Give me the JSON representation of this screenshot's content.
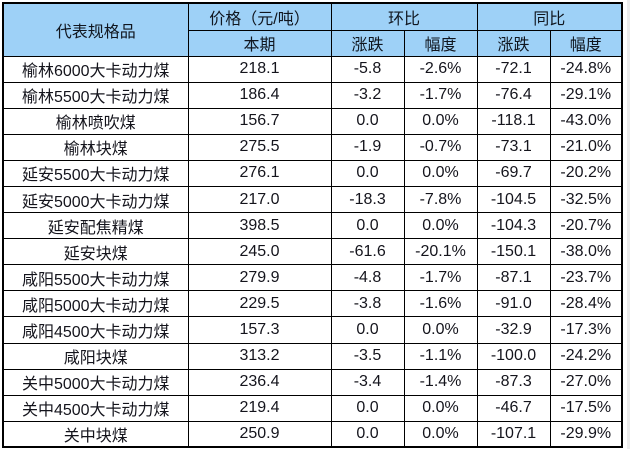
{
  "colors": {
    "header_bg": "#9ed1f7",
    "border": "#000000",
    "text": "#14141c",
    "page_bg": "#ffffff"
  },
  "table": {
    "header": {
      "product": "代表规格品",
      "price_group": "价格（元/吨）",
      "current_period": "本期",
      "mom_group": "环比",
      "yoy_group": "同比",
      "mom_change": "涨跌",
      "mom_rate": "幅度",
      "yoy_change": "涨跌",
      "yoy_rate": "幅度"
    }
  },
  "chart_data": {
    "type": "table",
    "title": "",
    "columns": [
      "代表规格品",
      "价格（元/吨）本期",
      "环比 涨跌",
      "环比 幅度",
      "同比 涨跌",
      "同比 幅度"
    ],
    "rows": [
      [
        "榆林6000大卡动力煤",
        "218.1",
        "-5.8",
        "-2.6%",
        "-72.1",
        "-24.8%"
      ],
      [
        "榆林5500大卡动力煤",
        "186.4",
        "-3.2",
        "-1.7%",
        "-76.4",
        "-29.1%"
      ],
      [
        "榆林喷吹煤",
        "156.7",
        "0.0",
        "0.0%",
        "-118.1",
        "-43.0%"
      ],
      [
        "榆林块煤",
        "275.5",
        "-1.9",
        "-0.7%",
        "-73.1",
        "-21.0%"
      ],
      [
        "延安5500大卡动力煤",
        "276.1",
        "0.0",
        "0.0%",
        "-69.7",
        "-20.2%"
      ],
      [
        "延安5000大卡动力煤",
        "217.0",
        "-18.3",
        "-7.8%",
        "-104.5",
        "-32.5%"
      ],
      [
        "延安配焦精煤",
        "398.5",
        "0.0",
        "0.0%",
        "-104.3",
        "-20.7%"
      ],
      [
        "延安块煤",
        "245.0",
        "-61.6",
        "-20.1%",
        "-150.1",
        "-38.0%"
      ],
      [
        "咸阳5500大卡动力煤",
        "279.9",
        "-4.8",
        "-1.7%",
        "-87.1",
        "-23.7%"
      ],
      [
        "咸阳5000大卡动力煤",
        "229.5",
        "-3.8",
        "-1.6%",
        "-91.0",
        "-28.4%"
      ],
      [
        "咸阳4500大卡动力煤",
        "157.3",
        "0.0",
        "0.0%",
        "-32.9",
        "-17.3%"
      ],
      [
        "咸阳块煤",
        "313.2",
        "-3.5",
        "-1.1%",
        "-100.0",
        "-24.2%"
      ],
      [
        "关中5000大卡动力煤",
        "236.4",
        "-3.4",
        "-1.4%",
        "-87.3",
        "-27.0%"
      ],
      [
        "关中4500大卡动力煤",
        "219.4",
        "0.0",
        "0.0%",
        "-46.7",
        "-17.5%"
      ],
      [
        "关中块煤",
        "250.9",
        "0.0",
        "0.0%",
        "-107.1",
        "-29.9%"
      ]
    ]
  }
}
